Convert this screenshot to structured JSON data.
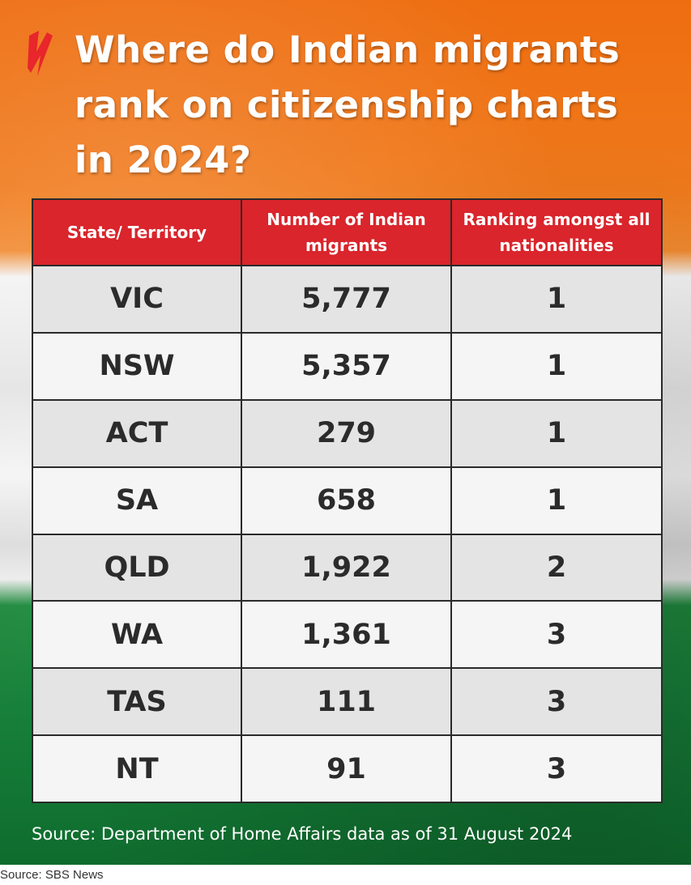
{
  "title": "Where do Indian migrants rank on citizenship charts in 2024?",
  "brand_color": "#d9252b",
  "logo_icon": "sbs-logo-icon",
  "chart_data": {
    "type": "table",
    "columns": [
      "State/ Territory",
      "Number of Indian migrants",
      "Ranking amongst all nationalities"
    ],
    "rows": [
      [
        "VIC",
        "5,777",
        "1"
      ],
      [
        "NSW",
        "5,357",
        "1"
      ],
      [
        "ACT",
        "279",
        "1"
      ],
      [
        "SA",
        "658",
        "1"
      ],
      [
        "QLD",
        "1,922",
        "2"
      ],
      [
        "WA",
        "1,361",
        "3"
      ],
      [
        "TAS",
        "111",
        "3"
      ],
      [
        "NT",
        "91",
        "3"
      ]
    ]
  },
  "source": "Source: Department of Home Affairs data as of 31 August 2024",
  "credit": "Source: SBS News"
}
